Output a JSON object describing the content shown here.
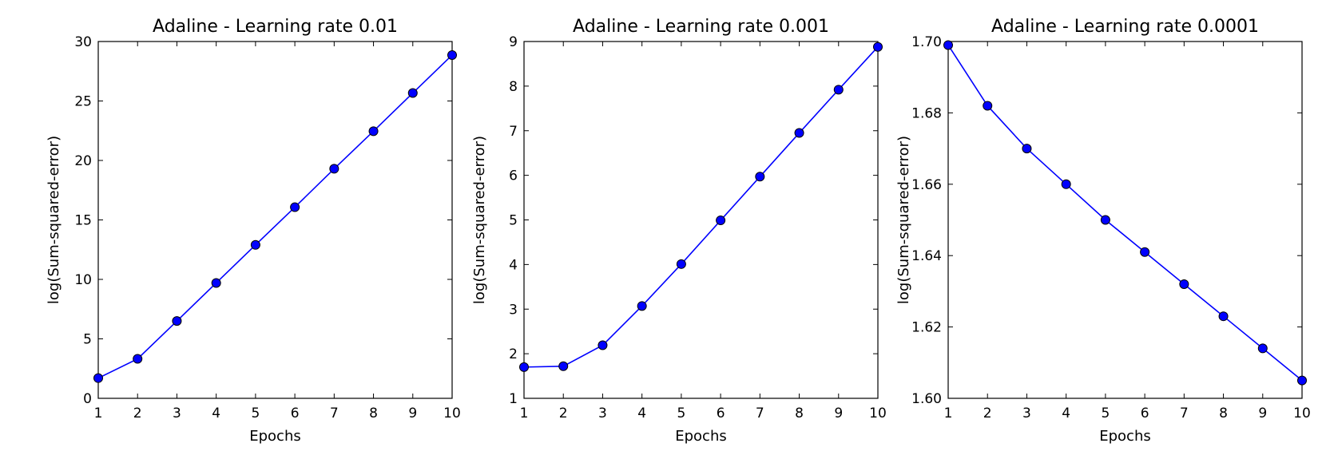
{
  "chart_data": [
    {
      "type": "line",
      "title": "Adaline - Learning rate 0.01",
      "xlabel": "Epochs",
      "ylabel": "log(Sum-squared-error)",
      "x": [
        1,
        2,
        3,
        4,
        5,
        6,
        7,
        8,
        9,
        10
      ],
      "series": [
        {
          "values": [
            1.7,
            3.32,
            6.5,
            9.7,
            12.9,
            16.07,
            19.3,
            22.46,
            25.67,
            28.86
          ]
        }
      ],
      "xlim": [
        1,
        10
      ],
      "ylim": [
        0,
        30
      ],
      "xticks": [
        1,
        2,
        3,
        4,
        5,
        6,
        7,
        8,
        9,
        10
      ],
      "yticks": [
        "0",
        "5",
        "10",
        "15",
        "20",
        "25",
        "30"
      ],
      "yticks_values": [
        0,
        5,
        10,
        15,
        20,
        25,
        30
      ],
      "grid": false,
      "color": "#0000ff",
      "marker": "circle"
    },
    {
      "type": "line",
      "title": "Adaline - Learning rate 0.001",
      "xlabel": "Epochs",
      "ylabel": "log(Sum-squared-error)",
      "x": [
        1,
        2,
        3,
        4,
        5,
        6,
        7,
        8,
        9,
        10
      ],
      "series": [
        {
          "values": [
            1.7,
            1.72,
            2.19,
            3.07,
            4.01,
            4.99,
            5.97,
            6.95,
            7.92,
            8.88
          ]
        }
      ],
      "xlim": [
        1,
        10
      ],
      "ylim": [
        1,
        9
      ],
      "xticks": [
        1,
        2,
        3,
        4,
        5,
        6,
        7,
        8,
        9,
        10
      ],
      "yticks": [
        "1",
        "2",
        "3",
        "4",
        "5",
        "6",
        "7",
        "8",
        "9"
      ],
      "yticks_values": [
        1,
        2,
        3,
        4,
        5,
        6,
        7,
        8,
        9
      ],
      "grid": false,
      "color": "#0000ff",
      "marker": "circle"
    },
    {
      "type": "line",
      "title": "Adaline - Learning rate 0.0001",
      "xlabel": "Epochs",
      "ylabel": "log(Sum-squared-error)",
      "x": [
        1,
        2,
        3,
        4,
        5,
        6,
        7,
        8,
        9,
        10
      ],
      "series": [
        {
          "values": [
            1.699,
            1.682,
            1.67,
            1.66,
            1.65,
            1.641,
            1.632,
            1.623,
            1.614,
            1.605
          ]
        }
      ],
      "xlim": [
        1,
        10
      ],
      "ylim": [
        1.6,
        1.7
      ],
      "xticks": [
        1,
        2,
        3,
        4,
        5,
        6,
        7,
        8,
        9,
        10
      ],
      "yticks": [
        "1.60",
        "1.62",
        "1.64",
        "1.66",
        "1.68",
        "1.70"
      ],
      "yticks_values": [
        1.6,
        1.62,
        1.64,
        1.66,
        1.68,
        1.7
      ],
      "grid": false,
      "color": "#0000ff",
      "marker": "circle"
    }
  ]
}
